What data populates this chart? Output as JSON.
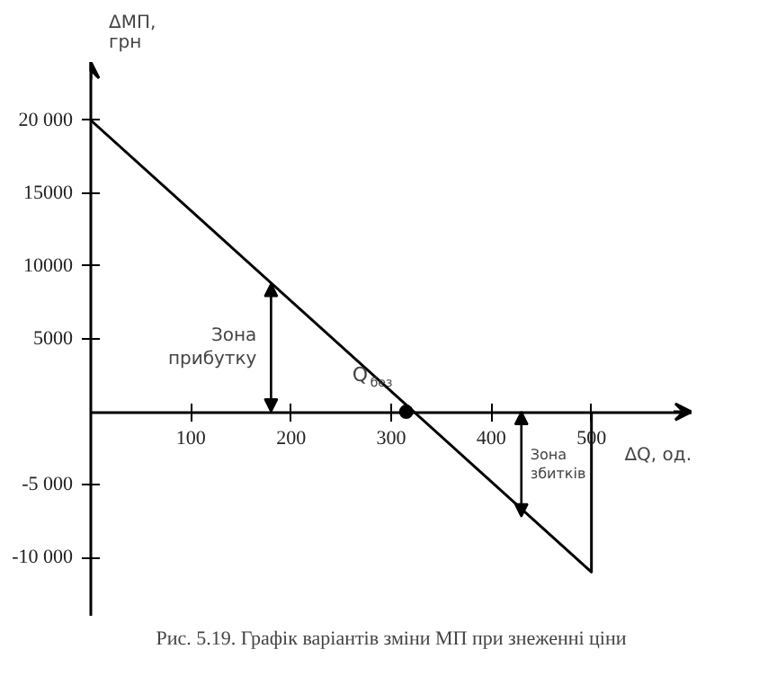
{
  "chart_data": {
    "type": "line",
    "title": "Рис. 5.19. Графік варіантів зміни МП при знеженні ціни",
    "xlabel": "ΔQ, од.",
    "ylabel": "ΔМП,\nгрн",
    "series": [
      {
        "x": [
          0,
          500,
          500
        ],
        "color": "#000000",
        "values": [
          20000,
          -11000,
          0
        ]
      },
      {
        "type": "scatter",
        "x": [
          315
        ],
        "color": "#000000",
        "values": [
          0
        ],
        "marker": "circle"
      }
    ],
    "xlim": [
      0,
      600
    ],
    "ylim": [
      -14000,
      24000
    ],
    "xticks": [
      100,
      200,
      300,
      400,
      500
    ],
    "yticks": [
      {
        "value": 20000,
        "label": "20 000"
      },
      15000,
      10000,
      5000,
      {
        "value": -5000,
        "label": "-5 000"
      },
      {
        "value": -10000,
        "label": "-10 000"
      }
    ],
    "annotations": [
      {
        "text": "Зона\nприбутку",
        "x": 180,
        "y": 8800
      },
      {
        "text": "Зона\nзбитків",
        "x": 430,
        "y": -7200
      },
      {
        "text": "Q$_{без}$",
        "x": 315,
        "y": 0
      }
    ],
    "grid": false,
    "line_style": "solid"
  }
}
